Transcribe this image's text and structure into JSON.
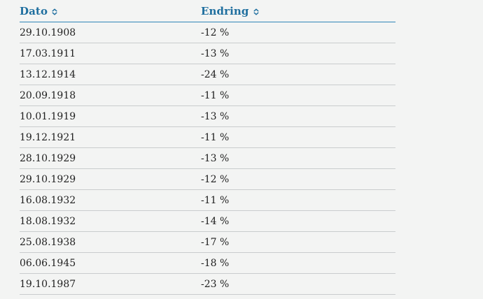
{
  "table": {
    "headers": {
      "dato": "Dato",
      "endring": "Endring"
    },
    "icons": {
      "sort": "sort-updown-icon"
    },
    "rows": [
      {
        "dato": "29.10.1908",
        "endring": "-12 %"
      },
      {
        "dato": "17.03.1911",
        "endring": "-13 %"
      },
      {
        "dato": "13.12.1914",
        "endring": "-24 %"
      },
      {
        "dato": "20.09.1918",
        "endring": "-11 %"
      },
      {
        "dato": "10.01.1919",
        "endring": "-13 %"
      },
      {
        "dato": "19.12.1921",
        "endring": "-11 %"
      },
      {
        "dato": "28.10.1929",
        "endring": "-13 %"
      },
      {
        "dato": "29.10.1929",
        "endring": "-12 %"
      },
      {
        "dato": "16.08.1932",
        "endring": "-11 %"
      },
      {
        "dato": "18.08.1932",
        "endring": "-14 %"
      },
      {
        "dato": "25.08.1938",
        "endring": "-17 %"
      },
      {
        "dato": "06.06.1945",
        "endring": "-18 %"
      },
      {
        "dato": "19.10.1987",
        "endring": "-23 %"
      }
    ],
    "colors": {
      "header_text": "#1f6f9f",
      "header_rule": "#2f86b8",
      "row_rule": "#c9cccd",
      "background": "#f3f4f3"
    }
  }
}
